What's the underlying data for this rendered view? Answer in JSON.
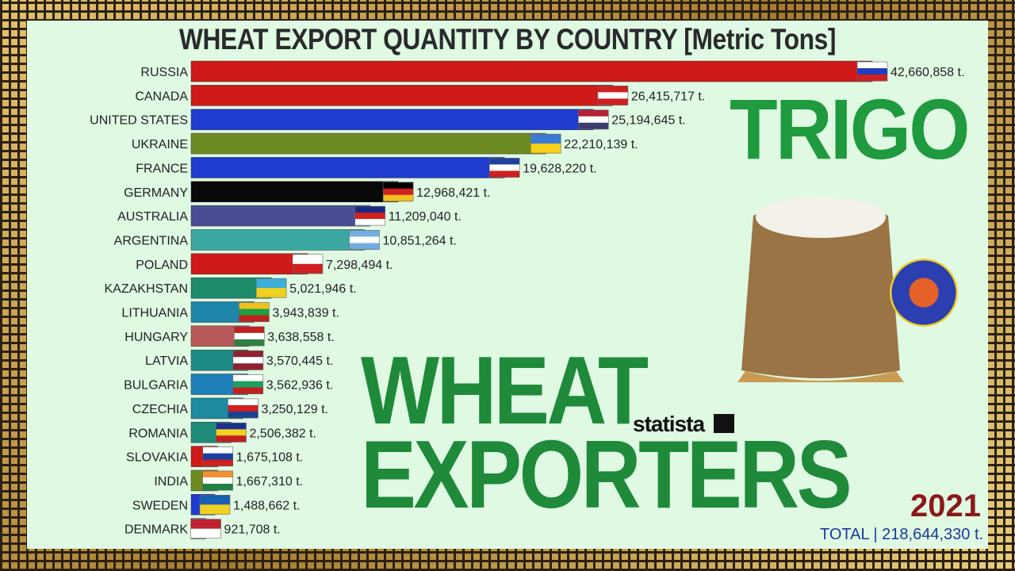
{
  "chart_data": {
    "type": "bar",
    "orientation": "horizontal",
    "title": "WHEAT EXPORT QUANTITY BY COUNTRY [Metric Tons]",
    "unit_suffix": " t.",
    "categories": [
      "RUSSIA",
      "CANADA",
      "UNITED STATES",
      "UKRAINE",
      "FRANCE",
      "GERMANY",
      "AUSTRALIA",
      "ARGENTINA",
      "POLAND",
      "KAZAKHSTAN",
      "LITHUANIA",
      "HUNGARY",
      "LATVIA",
      "BULGARIA",
      "CZECHIA",
      "ROMANIA",
      "SLOVAKIA",
      "INDIA",
      "SWEDEN",
      "DENMARK"
    ],
    "values": [
      42660858,
      26415717,
      25194645,
      22210139,
      19628220,
      12968421,
      11209040,
      10851264,
      7298494,
      5021946,
      3943839,
      3638558,
      3570445,
      3562936,
      3250129,
      2506382,
      1675108,
      1667310,
      1488662,
      921708
    ],
    "value_labels": [
      "42,660,858 t.",
      "26,415,717 t.",
      "25,194,645 t.",
      "22,210,139 t.",
      "19,628,220 t.",
      "12,968,421 t.",
      "11,209,040 t.",
      "10,851,264 t.",
      "7,298,494 t.",
      "5,021,946 t.",
      "3,943,839 t.",
      "3,638,558 t.",
      "3,570,445 t.",
      "3,562,936 t.",
      "3,250,129 t.",
      "2,506,382 t.",
      "1,675,108 t.",
      "1,667,310 t.",
      "1,488,662 t.",
      "921,708 t."
    ],
    "colors": [
      "#d01919",
      "#d01919",
      "#1f3ccf",
      "#6e8a22",
      "#1f3ccf",
      "#080808",
      "#4b4b96",
      "#3aa8a0",
      "#d01919",
      "#1d8a6a",
      "#1e86a8",
      "#b95a5a",
      "#1e8a86",
      "#1e7fb8",
      "#1c8aa0",
      "#1e8a7a",
      "#d01919",
      "#6e8a22",
      "#1f3ccf",
      "#6d6da8"
    ],
    "flag_colors": [
      [
        "#ffffff",
        "#2040c0",
        "#d02020"
      ],
      [
        "#d02020",
        "#ffffff",
        "#d02020"
      ],
      [
        "#b22234",
        "#ffffff",
        "#3c3b6e"
      ],
      [
        "#3a7bd5",
        "#f7d117"
      ],
      [
        "#2040a0",
        "#ffffff",
        "#d02020"
      ],
      [
        "#000000",
        "#d02020",
        "#f0c020"
      ],
      [
        "#1a2a80",
        "#d02020",
        "#ffffff"
      ],
      [
        "#74acdf",
        "#ffffff",
        "#74acdf"
      ],
      [
        "#ffffff",
        "#d02020"
      ],
      [
        "#3ab0d8",
        "#f0d020"
      ],
      [
        "#f0c020",
        "#20a040",
        "#c02020"
      ],
      [
        "#c02020",
        "#ffffff",
        "#308040"
      ],
      [
        "#902030",
        "#ffffff",
        "#902030"
      ],
      [
        "#ffffff",
        "#20a060",
        "#c02020"
      ],
      [
        "#ffffff",
        "#d02020",
        "#1a4090"
      ],
      [
        "#1a3090",
        "#f0d020",
        "#c02020"
      ],
      [
        "#ffffff",
        "#1a40a0",
        "#d02020"
      ],
      [
        "#f09030",
        "#ffffff",
        "#208040"
      ],
      [
        "#1a60b0",
        "#f0d020"
      ],
      [
        "#c02030",
        "#ffffff"
      ]
    ],
    "year": "2021",
    "total_label": "TOTAL | 218,644,330 t.",
    "xlabel": "",
    "ylabel": ""
  },
  "overlay": {
    "trigo": "TRIGO",
    "wheat": "WHEAT",
    "exporters": "EXPORTERS",
    "statista": "statista"
  }
}
